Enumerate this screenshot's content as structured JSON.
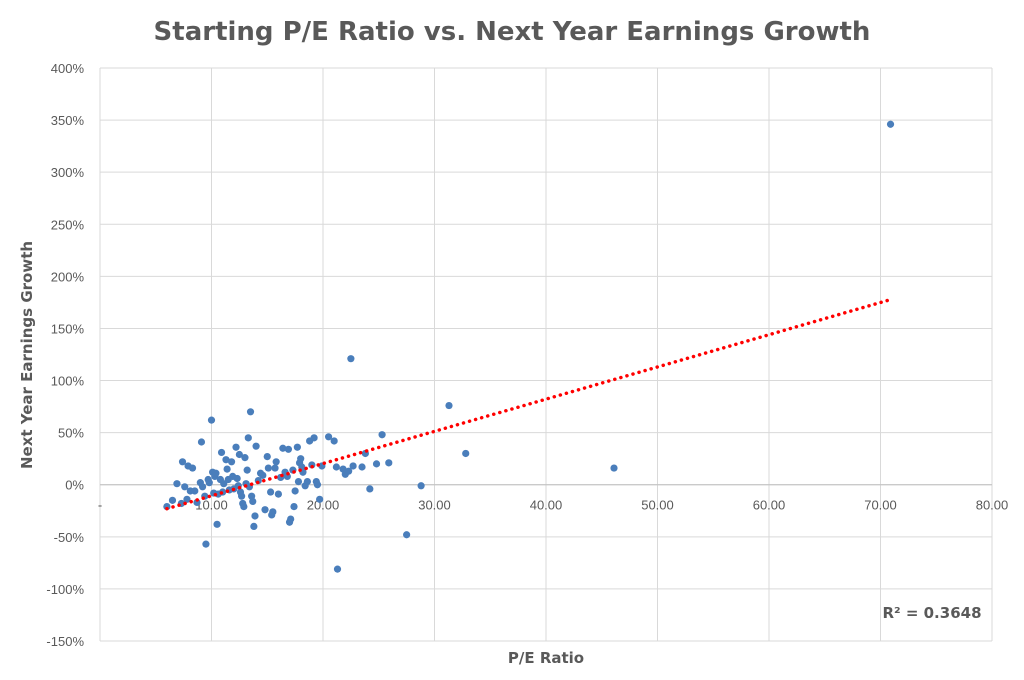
{
  "chart_data": {
    "type": "scatter",
    "title": "Starting P/E Ratio vs. Next Year Earnings Growth",
    "xlabel": "P/E Ratio",
    "ylabel": "Next Year Earnings Growth",
    "xlim": [
      0,
      80
    ],
    "ylim": [
      -1.5,
      4.0
    ],
    "x_ticks": [
      "-",
      "10.00",
      "20.00",
      "30.00",
      "40.00",
      "50.00",
      "60.00",
      "70.00",
      "80.00"
    ],
    "y_ticks": [
      "-150%",
      "-100%",
      "-50%",
      "0%",
      "50%",
      "100%",
      "150%",
      "200%",
      "250%",
      "300%",
      "350%",
      "400%"
    ],
    "grid": true,
    "marker_color": "#4a7ebb",
    "trendline": {
      "color": "#ff0000",
      "style": "dotted",
      "x": [
        6.0,
        71.0
      ],
      "y": [
        -0.23,
        1.78
      ]
    },
    "r_squared_label": "R² = 0.3648",
    "points": [
      [
        6.0,
        -0.21
      ],
      [
        6.5,
        -0.15
      ],
      [
        6.9,
        0.01
      ],
      [
        7.3,
        -0.18
      ],
      [
        7.4,
        0.22
      ],
      [
        7.6,
        -0.02
      ],
      [
        7.8,
        -0.14
      ],
      [
        7.9,
        0.18
      ],
      [
        8.1,
        -0.06
      ],
      [
        8.3,
        0.16
      ],
      [
        8.5,
        -0.06
      ],
      [
        8.7,
        -0.17
      ],
      [
        9.1,
        0.41
      ],
      [
        9.0,
        0.02
      ],
      [
        9.2,
        -0.02
      ],
      [
        9.4,
        -0.11
      ],
      [
        9.5,
        -0.57
      ],
      [
        9.7,
        0.05
      ],
      [
        9.8,
        0.02
      ],
      [
        10.0,
        0.62
      ],
      [
        10.1,
        0.12
      ],
      [
        10.2,
        -0.08
      ],
      [
        10.3,
        0.08
      ],
      [
        10.4,
        0.11
      ],
      [
        10.5,
        -0.38
      ],
      [
        10.6,
        -0.09
      ],
      [
        10.8,
        0.05
      ],
      [
        10.9,
        0.31
      ],
      [
        11.0,
        -0.07
      ],
      [
        11.1,
        0.01
      ],
      [
        11.3,
        0.24
      ],
      [
        11.4,
        0.15
      ],
      [
        11.5,
        0.05
      ],
      [
        11.6,
        -0.05
      ],
      [
        11.8,
        0.22
      ],
      [
        11.9,
        0.08
      ],
      [
        12.0,
        -0.04
      ],
      [
        12.2,
        0.36
      ],
      [
        12.3,
        0.06
      ],
      [
        12.4,
        -0.01
      ],
      [
        12.5,
        0.29
      ],
      [
        12.6,
        -0.07
      ],
      [
        12.7,
        -0.11
      ],
      [
        12.8,
        -0.18
      ],
      [
        12.9,
        -0.21
      ],
      [
        13.0,
        0.26
      ],
      [
        13.1,
        0.01
      ],
      [
        13.2,
        0.14
      ],
      [
        13.3,
        0.45
      ],
      [
        13.4,
        -0.02
      ],
      [
        13.5,
        0.7
      ],
      [
        13.6,
        -0.11
      ],
      [
        13.7,
        -0.16
      ],
      [
        13.8,
        -0.4
      ],
      [
        13.9,
        -0.3
      ],
      [
        14.0,
        0.37
      ],
      [
        14.2,
        0.04
      ],
      [
        14.4,
        0.11
      ],
      [
        14.6,
        0.09
      ],
      [
        14.8,
        -0.24
      ],
      [
        15.0,
        0.27
      ],
      [
        15.1,
        0.16
      ],
      [
        15.3,
        -0.07
      ],
      [
        15.4,
        -0.29
      ],
      [
        15.5,
        -0.26
      ],
      [
        15.7,
        0.16
      ],
      [
        15.8,
        0.22
      ],
      [
        16.0,
        -0.09
      ],
      [
        16.2,
        0.07
      ],
      [
        16.4,
        0.35
      ],
      [
        16.6,
        0.12
      ],
      [
        16.8,
        0.08
      ],
      [
        16.9,
        0.34
      ],
      [
        17.0,
        -0.36
      ],
      [
        17.1,
        -0.33
      ],
      [
        17.3,
        0.14
      ],
      [
        17.4,
        -0.21
      ],
      [
        17.5,
        -0.06
      ],
      [
        17.7,
        0.36
      ],
      [
        17.8,
        0.03
      ],
      [
        17.9,
        0.21
      ],
      [
        18.0,
        0.25
      ],
      [
        18.1,
        0.17
      ],
      [
        18.2,
        0.12
      ],
      [
        18.4,
        -0.01
      ],
      [
        18.6,
        0.03
      ],
      [
        18.8,
        0.42
      ],
      [
        19.0,
        0.19
      ],
      [
        19.2,
        0.45
      ],
      [
        19.4,
        0.03
      ],
      [
        19.5,
        0.0
      ],
      [
        19.7,
        -0.14
      ],
      [
        19.9,
        0.18
      ],
      [
        20.5,
        0.46
      ],
      [
        21.0,
        0.42
      ],
      [
        21.3,
        -0.81
      ],
      [
        21.2,
        0.17
      ],
      [
        21.8,
        0.15
      ],
      [
        22.0,
        0.1
      ],
      [
        22.3,
        0.13
      ],
      [
        22.5,
        1.21
      ],
      [
        22.7,
        0.18
      ],
      [
        23.5,
        0.17
      ],
      [
        23.8,
        0.3
      ],
      [
        24.2,
        -0.04
      ],
      [
        24.8,
        0.2
      ],
      [
        25.3,
        0.48
      ],
      [
        25.9,
        0.21
      ],
      [
        27.5,
        -0.48
      ],
      [
        28.8,
        -0.01
      ],
      [
        31.3,
        0.76
      ],
      [
        32.8,
        0.3
      ],
      [
        46.1,
        0.16
      ],
      [
        70.9,
        3.46
      ]
    ]
  }
}
